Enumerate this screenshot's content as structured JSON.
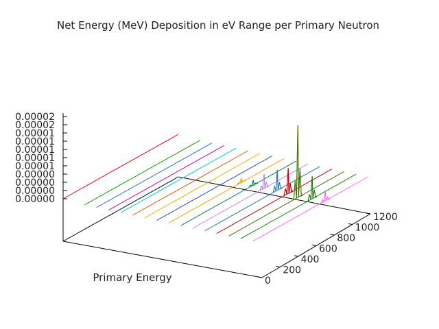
{
  "chart_data": {
    "type": "line",
    "title": "Net Energy (MeV) Deposition in eV Range per Primary Neutron",
    "xlabel": "Primary Energy",
    "ylabel": "",
    "zlabel": "",
    "z_tick_labels": [
      "0.00002",
      "0.00002",
      "0.00001",
      "0.00001",
      "0.00001",
      "0.00001",
      "0.00001",
      "0.00000",
      "0.00000",
      "0.00000",
      "0.00000"
    ],
    "y_tick_labels": [
      "0",
      "200",
      "400",
      "600",
      "800",
      "1000",
      "1200"
    ],
    "series": [
      {
        "color": "#e8000b",
        "peak_pos": 0.62,
        "peak": 0.0
      },
      {
        "color": "#00a000",
        "peak_pos": 0.62,
        "peak": 0.0
      },
      {
        "color": "#1f78d0",
        "peak_pos": 0.62,
        "peak": 0.0
      },
      {
        "color": "#c000c0",
        "peak_pos": 0.62,
        "peak": 0.0
      },
      {
        "color": "#00c8e0",
        "peak_pos": 0.62,
        "peak": 0.0
      },
      {
        "color": "#d05a00",
        "peak_pos": 0.62,
        "peak": 0.0
      },
      {
        "color": "#e0b400",
        "peak_pos": 0.62,
        "peak": 0.0
      },
      {
        "color": "#2050b0",
        "peak_pos": 0.62,
        "peak": 0.0
      },
      {
        "color": "#f0a000",
        "peak_pos": 0.63,
        "peak": 1e-06
      },
      {
        "color": "#008050",
        "peak_pos": 0.63,
        "peak": 1.2e-06
      },
      {
        "color": "#c080f0",
        "peak_pos": 0.62,
        "peak": 3.5e-06
      },
      {
        "color": "#2878a8",
        "peak_pos": 0.63,
        "peak": 5e-06
      },
      {
        "color": "#c00000",
        "peak_pos": 0.62,
        "peak": 6.2e-06
      },
      {
        "color": "#407000",
        "peak_pos": 0.6,
        "peak": 1.75e-05
      },
      {
        "color": "#108800",
        "peak_pos": 0.62,
        "peak": 5.5e-06
      },
      {
        "color": "#f070f0",
        "peak_pos": 0.63,
        "peak": 2.2e-06
      }
    ]
  }
}
